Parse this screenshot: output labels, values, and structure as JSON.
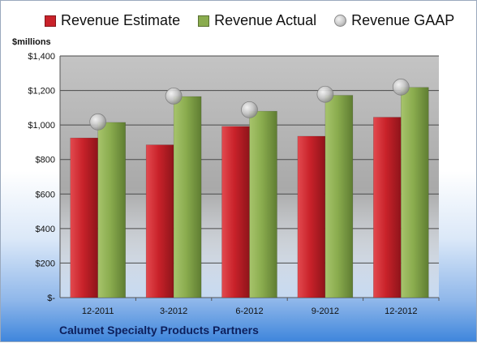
{
  "chart_data": {
    "type": "bar",
    "title": "",
    "ylabel": "$millions",
    "xlabel": "",
    "footer": "Calumet Specialty Products Partners",
    "categories": [
      "12-2011",
      "3-2012",
      "6-2012",
      "9-2012",
      "12-2012"
    ],
    "ylim": [
      0,
      1400
    ],
    "yticks": [
      0,
      200,
      400,
      600,
      800,
      1000,
      1200,
      1400
    ],
    "ytick_labels": [
      "$-",
      "$200",
      "$400",
      "$600",
      "$800",
      "$1,000",
      "$1,200",
      "$1,400"
    ],
    "grid": true,
    "legend_position": "top",
    "series": [
      {
        "name": "Revenue Estimate",
        "kind": "bar",
        "color": "#c9222a",
        "values": [
          925,
          885,
          992,
          935,
          1045
        ]
      },
      {
        "name": "Revenue Actual",
        "kind": "bar",
        "color": "#8aac4e",
        "values": [
          1015,
          1165,
          1080,
          1172,
          1218
        ]
      },
      {
        "name": "Revenue GAAP",
        "kind": "marker",
        "color": "#b8b8b8",
        "values": [
          1018,
          1168,
          1088,
          1178,
          1220
        ]
      }
    ]
  }
}
